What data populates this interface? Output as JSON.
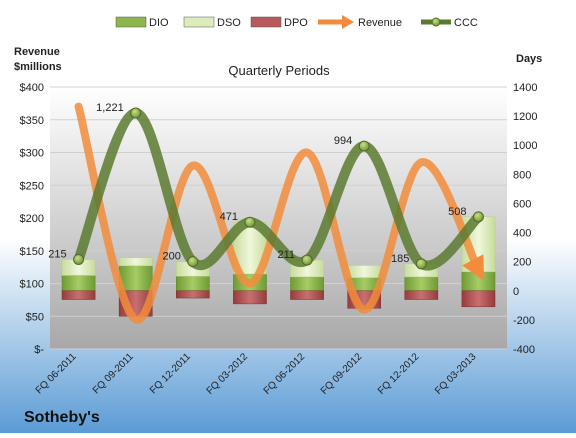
{
  "chart_data": {
    "type": "bar",
    "title": "Quarterly Periods",
    "company": "Sotheby's",
    "left_axis_label": [
      "Revenue",
      "$millions"
    ],
    "right_axis_label": "Days",
    "categories": [
      "FQ 06-2011",
      "FQ 09-2011",
      "FQ 12-2011",
      "FQ 03-2012",
      "FQ 06-2012",
      "FQ 09-2012",
      "FQ 12-2012",
      "FQ 03-2013"
    ],
    "left_ticks": [
      "$400",
      "$350",
      "$300",
      "$250",
      "$200",
      "$150",
      "$100",
      "$50",
      "$-"
    ],
    "right_ticks": [
      "1400",
      "1200",
      "1000",
      "800",
      "600",
      "400",
      "200",
      "0",
      "-200",
      "-400"
    ],
    "ylim_left": [
      0,
      400
    ],
    "ylim_right": [
      -400,
      1400
    ],
    "legend_position": "top",
    "legend": [
      {
        "name": "DIO",
        "kind": "bar",
        "color": "#8db64c"
      },
      {
        "name": "DSO",
        "kind": "bar",
        "color": "#ddecbb"
      },
      {
        "name": "DPO",
        "kind": "bar",
        "color": "#b85a5a"
      },
      {
        "name": "Revenue",
        "kind": "arrow",
        "color": "#f28c3c"
      },
      {
        "name": "CCC",
        "kind": "dotline",
        "color": "#5a7a30"
      }
    ],
    "series": [
      {
        "name": "DIO",
        "axis": "right",
        "values": [
          105,
          172,
          100,
          115,
          95,
          90,
          95,
          130
        ]
      },
      {
        "name": "DSO",
        "axis": "right",
        "values": [
          110,
          55,
          100,
          356,
          116,
          84,
          90,
          378
        ]
      },
      {
        "name": "DPO",
        "axis": "right",
        "values": [
          -60,
          -175,
          -50,
          -90,
          -60,
          -120,
          -60,
          -110
        ]
      },
      {
        "name": "Revenue",
        "axis": "left",
        "values": [
          370,
          45,
          280,
          100,
          300,
          60,
          285,
          120
        ]
      },
      {
        "name": "CCC",
        "axis": "right",
        "values": [
          215,
          1221,
          200,
          471,
          211,
          994,
          185,
          508
        ]
      }
    ],
    "ccc_labels": [
      "215",
      "1,221",
      "200",
      "471",
      "211",
      "994",
      "185",
      "508"
    ],
    "colors": {
      "plot_bg_top": "#ffffff",
      "plot_bg_bottom": "#a8a8a8",
      "page_top": "#ffffff",
      "page_bottom": "#5b9bd5"
    }
  }
}
